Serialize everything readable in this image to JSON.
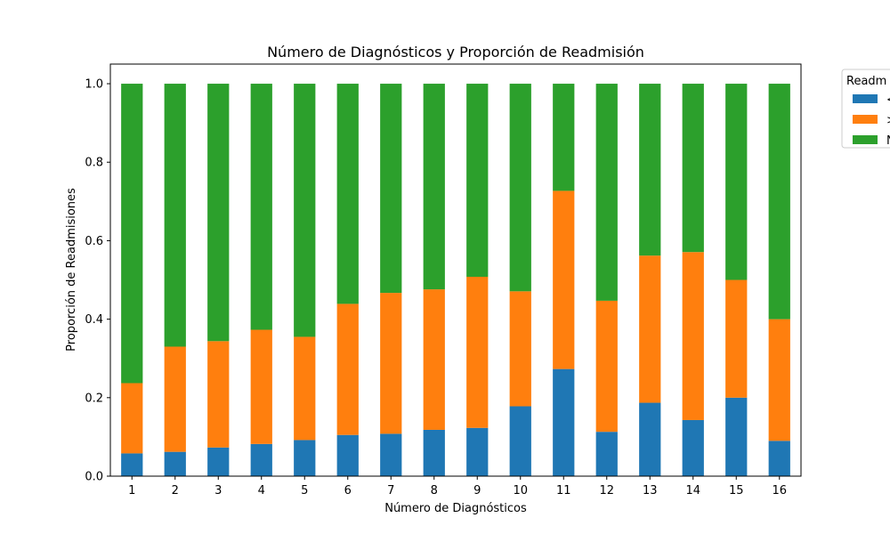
{
  "chart_data": {
    "type": "bar",
    "stacked": true,
    "title": "Número de Diagnósticos y Proporción de Readmisión",
    "xlabel": "Número de Diagnósticos",
    "ylabel": "Proporción de Readmisiones",
    "ylim": [
      0,
      1.05
    ],
    "yticks": [
      "0.0",
      "0.2",
      "0.4",
      "0.6",
      "0.8",
      "1.0"
    ],
    "categories": [
      "1",
      "2",
      "3",
      "4",
      "5",
      "6",
      "7",
      "8",
      "9",
      "10",
      "11",
      "12",
      "13",
      "14",
      "15",
      "16"
    ],
    "legend": {
      "title": "Readm",
      "placement": "outside-top-right",
      "labels": [
        "<",
        ">",
        "N"
      ]
    },
    "grid": false,
    "series": [
      {
        "color": "#1f77b4",
        "values": [
          0.058,
          0.062,
          0.073,
          0.082,
          0.092,
          0.105,
          0.108,
          0.118,
          0.123,
          0.178,
          0.273,
          0.113,
          0.187,
          0.143,
          0.2,
          0.09
        ]
      },
      {
        "color": "#ff7f0e",
        "values": [
          0.179,
          0.268,
          0.271,
          0.291,
          0.263,
          0.334,
          0.359,
          0.358,
          0.385,
          0.293,
          0.454,
          0.334,
          0.375,
          0.428,
          0.3,
          0.31
        ]
      },
      {
        "color": "#2ca02c",
        "values": [
          0.763,
          0.67,
          0.656,
          0.627,
          0.645,
          0.561,
          0.533,
          0.524,
          0.492,
          0.529,
          0.273,
          0.553,
          0.438,
          0.429,
          0.5,
          0.6
        ]
      }
    ]
  }
}
